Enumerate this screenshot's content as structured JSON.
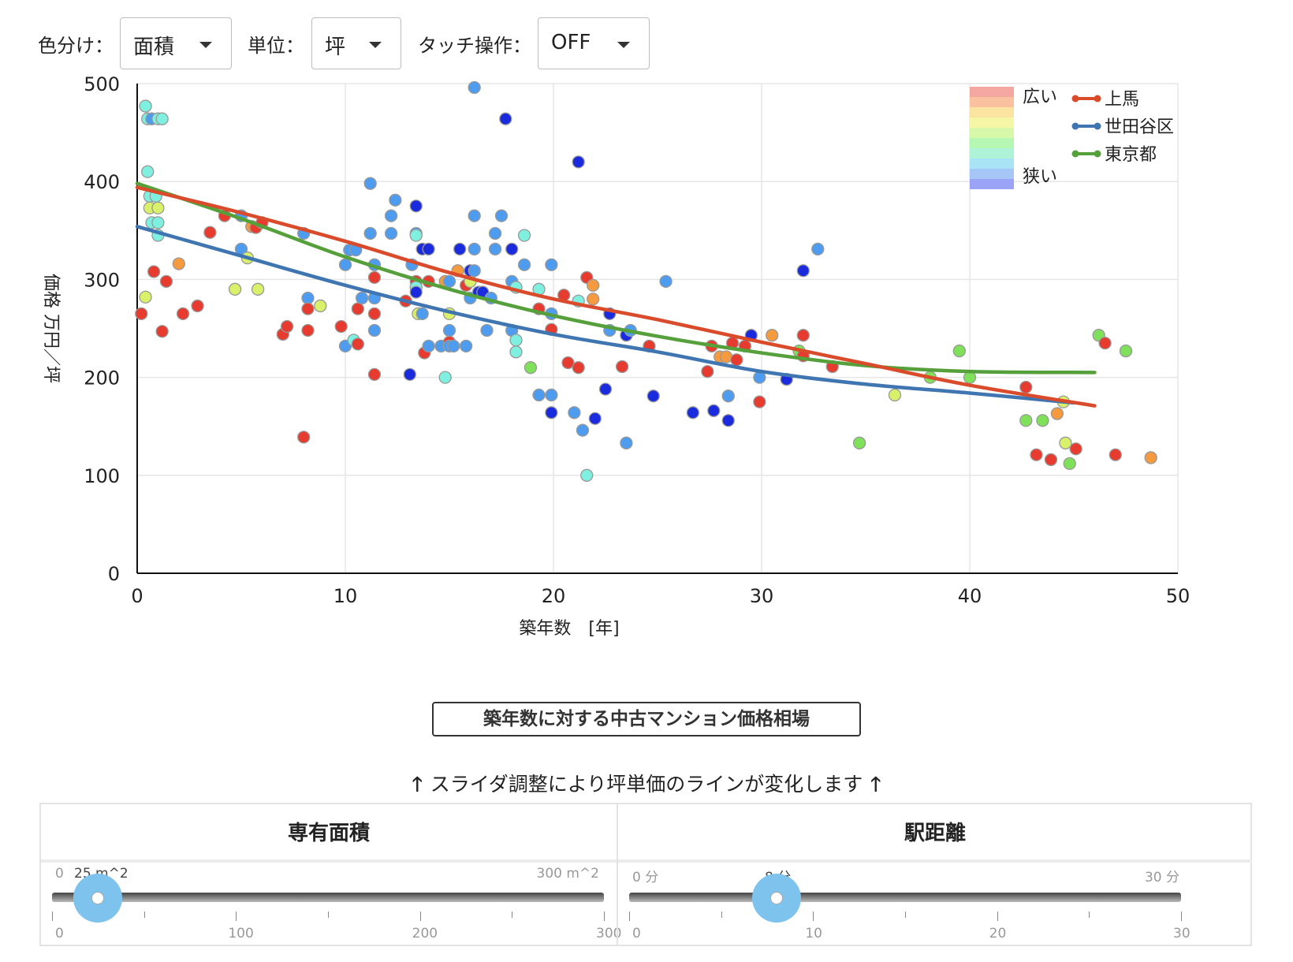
{
  "controls": {
    "color_label": "色分け：",
    "color_value": "面積",
    "unit_label": "単位：",
    "unit_value": "坪",
    "touch_label": "タッチ操作：",
    "touch_value": "OFF"
  },
  "chart_data": {
    "type": "scatter",
    "xlabel": "築年数　[年]",
    "ylabel": "価格 万円／坪",
    "xlim": [
      0,
      50
    ],
    "ylim": [
      0,
      500
    ],
    "xticks": [
      0,
      10,
      20,
      30,
      40,
      50
    ],
    "yticks": [
      0,
      100,
      200,
      300,
      400,
      500
    ],
    "grid": true,
    "legend_placement": "top-right",
    "size_legend": {
      "top": "広い",
      "bottom": "狭い",
      "colors": [
        "#f4a6a0",
        "#f9c1a0",
        "#fbe3a2",
        "#f5f7a6",
        "#d7f8a8",
        "#b6f7b4",
        "#aef2d8",
        "#aae3f5",
        "#a6c6f8",
        "#9aa3f5"
      ]
    },
    "series": [
      {
        "name": "上馬",
        "color": "#d94b2b",
        "x": [
          0,
          5,
          10,
          15,
          20,
          25,
          30,
          35,
          40,
          46
        ],
        "y": [
          394,
          368,
          339,
          307,
          280,
          259,
          236,
          214,
          192,
          171
        ]
      },
      {
        "name": "世田谷区",
        "color": "#3f75b0",
        "x": [
          0,
          5,
          10,
          15,
          20,
          25,
          30,
          35,
          40,
          45
        ],
        "y": [
          354,
          324,
          294,
          267,
          244,
          226,
          206,
          193,
          184,
          174
        ]
      },
      {
        "name": "東京都",
        "color": "#55a03b",
        "x": [
          0,
          5,
          10,
          15,
          20,
          25,
          30,
          35,
          40,
          46
        ],
        "y": [
          398,
          362,
          323,
          290,
          263,
          242,
          225,
          212,
          206,
          205
        ]
      }
    ],
    "points": [
      [
        0.2,
        265,
        "#e63b2e"
      ],
      [
        0.4,
        282,
        "#d8f06a"
      ],
      [
        0.4,
        477,
        "#7ff0e0"
      ],
      [
        0.5,
        464,
        "#7ff0e0"
      ],
      [
        0.6,
        385,
        "#7ff0e0"
      ],
      [
        0.5,
        410,
        "#7ff0e0"
      ],
      [
        0.6,
        373,
        "#d8f06a"
      ],
      [
        0.7,
        358,
        "#7ff0e0"
      ],
      [
        0.7,
        464,
        "#4d9cf0"
      ],
      [
        0.8,
        308,
        "#e63b2e"
      ],
      [
        0.9,
        385,
        "#7ff0e0"
      ],
      [
        1.0,
        345,
        "#7ff0e0"
      ],
      [
        1.0,
        373,
        "#d8f06a"
      ],
      [
        1.0,
        358,
        "#7ff0e0"
      ],
      [
        1.0,
        464,
        "#7ff0e0"
      ],
      [
        1.2,
        464,
        "#7ff0e0"
      ],
      [
        1.2,
        247,
        "#e63b2e"
      ],
      [
        1.4,
        298,
        "#e63b2e"
      ],
      [
        2.0,
        316,
        "#f59a3e"
      ],
      [
        2.2,
        265,
        "#e63b2e"
      ],
      [
        2.9,
        273,
        "#e63b2e"
      ],
      [
        3.5,
        348,
        "#e63b2e"
      ],
      [
        4.2,
        365,
        "#e63b2e"
      ],
      [
        4.7,
        290,
        "#d8f06a"
      ],
      [
        5.0,
        365,
        "#4d9cf0"
      ],
      [
        5.0,
        331,
        "#4d9cf0"
      ],
      [
        5.3,
        322,
        "#d8f06a"
      ],
      [
        5.5,
        354,
        "#f59a3e"
      ],
      [
        5.7,
        353,
        "#e63b2e"
      ],
      [
        5.8,
        290,
        "#d8f06a"
      ],
      [
        6.0,
        358,
        "#e63b2e"
      ],
      [
        7.0,
        244,
        "#e63b2e"
      ],
      [
        7.2,
        252,
        "#e63b2e"
      ],
      [
        8.0,
        139,
        "#e63b2e"
      ],
      [
        8.0,
        347,
        "#4d9cf0"
      ],
      [
        8.2,
        281,
        "#4d9cf0"
      ],
      [
        8.2,
        270,
        "#e63b2e"
      ],
      [
        8.2,
        248,
        "#e63b2e"
      ],
      [
        8.8,
        273,
        "#d8f06a"
      ],
      [
        9.8,
        252,
        "#e63b2e"
      ],
      [
        10.0,
        315,
        "#4d9cf0"
      ],
      [
        10.0,
        232,
        "#4d9cf0"
      ],
      [
        10.2,
        330,
        "#4d9cf0"
      ],
      [
        10.4,
        238,
        "#7ff0e0"
      ],
      [
        10.5,
        330,
        "#4d9cf0"
      ],
      [
        10.6,
        270,
        "#e63b2e"
      ],
      [
        10.6,
        234,
        "#e63b2e"
      ],
      [
        10.8,
        281,
        "#4d9cf0"
      ],
      [
        11.2,
        398,
        "#4d9cf0"
      ],
      [
        11.2,
        347,
        "#4d9cf0"
      ],
      [
        11.4,
        315,
        "#4d9cf0"
      ],
      [
        11.4,
        302,
        "#e63b2e"
      ],
      [
        11.4,
        281,
        "#4d9cf0"
      ],
      [
        11.4,
        265,
        "#e63b2e"
      ],
      [
        11.4,
        248,
        "#4d9cf0"
      ],
      [
        11.4,
        203,
        "#e63b2e"
      ],
      [
        12.2,
        365,
        "#4d9cf0"
      ],
      [
        12.2,
        347,
        "#4d9cf0"
      ],
      [
        12.4,
        381,
        "#4d9cf0"
      ],
      [
        12.9,
        278,
        "#e63b2e"
      ],
      [
        13.1,
        203,
        "#1a2bde"
      ],
      [
        13.2,
        315,
        "#4d9cf0"
      ],
      [
        13.4,
        375,
        "#1a2bde"
      ],
      [
        13.4,
        347,
        "#4d9cf0"
      ],
      [
        13.4,
        345,
        "#7ff0e0"
      ],
      [
        13.4,
        298,
        "#e63b2e"
      ],
      [
        13.4,
        292,
        "#7ff0e0"
      ],
      [
        13.4,
        287,
        "#1a2bde"
      ],
      [
        13.5,
        265,
        "#d8f06a"
      ],
      [
        13.7,
        265,
        "#4d9cf0"
      ],
      [
        13.7,
        331,
        "#1a2bde"
      ],
      [
        13.8,
        225,
        "#e63b2e"
      ],
      [
        14.0,
        232,
        "#4d9cf0"
      ],
      [
        14.0,
        331,
        "#1a2bde"
      ],
      [
        14.0,
        298,
        "#e63b2e"
      ],
      [
        14.6,
        232,
        "#4d9cf0"
      ],
      [
        14.8,
        200,
        "#7ff0e0"
      ],
      [
        14.8,
        298,
        "#f59a3e"
      ],
      [
        15.0,
        298,
        "#4d9cf0"
      ],
      [
        15.0,
        265,
        "#d8f06a"
      ],
      [
        15.0,
        248,
        "#4d9cf0"
      ],
      [
        15.0,
        236,
        "#e63b2e"
      ],
      [
        15.0,
        232,
        "#4d9cf0"
      ],
      [
        15.2,
        232,
        "#4d9cf0"
      ],
      [
        15.4,
        309,
        "#f59a3e"
      ],
      [
        15.5,
        331,
        "#1a2bde"
      ],
      [
        15.8,
        294,
        "#e63b2e"
      ],
      [
        15.8,
        232,
        "#4d9cf0"
      ],
      [
        16.0,
        298,
        "#d8f06a"
      ],
      [
        16.0,
        309,
        "#1a2bde"
      ],
      [
        16.0,
        281,
        "#4d9cf0"
      ],
      [
        16.2,
        331,
        "#4d9cf0"
      ],
      [
        16.2,
        365,
        "#4d9cf0"
      ],
      [
        16.2,
        496,
        "#4d9cf0"
      ],
      [
        16.2,
        309,
        "#4d9cf0"
      ],
      [
        16.4,
        287,
        "#1a2bde"
      ],
      [
        16.6,
        287,
        "#1a2bde"
      ],
      [
        16.8,
        248,
        "#4d9cf0"
      ],
      [
        17.0,
        281,
        "#4d9cf0"
      ],
      [
        17.2,
        331,
        "#4d9cf0"
      ],
      [
        17.2,
        347,
        "#4d9cf0"
      ],
      [
        17.5,
        365,
        "#4d9cf0"
      ],
      [
        17.7,
        464,
        "#1a2bde"
      ],
      [
        18.0,
        331,
        "#1a2bde"
      ],
      [
        18.0,
        298,
        "#4d9cf0"
      ],
      [
        18.0,
        248,
        "#4d9cf0"
      ],
      [
        18.2,
        292,
        "#7ff0e0"
      ],
      [
        18.2,
        238,
        "#7ff0e0"
      ],
      [
        18.2,
        226,
        "#7ff0e0"
      ],
      [
        18.6,
        345,
        "#7ff0e0"
      ],
      [
        18.6,
        315,
        "#4d9cf0"
      ],
      [
        18.9,
        210,
        "#7fe05a"
      ],
      [
        19.3,
        290,
        "#7ff0e0"
      ],
      [
        19.3,
        270,
        "#e63b2e"
      ],
      [
        19.3,
        182,
        "#4d9cf0"
      ],
      [
        19.9,
        265,
        "#4d9cf0"
      ],
      [
        19.9,
        315,
        "#4d9cf0"
      ],
      [
        19.9,
        249,
        "#e63b2e"
      ],
      [
        19.9,
        182,
        "#4d9cf0"
      ],
      [
        19.9,
        164,
        "#1a2bde"
      ],
      [
        20.5,
        284,
        "#e63b2e"
      ],
      [
        20.7,
        215,
        "#e63b2e"
      ],
      [
        21.0,
        164,
        "#4d9cf0"
      ],
      [
        21.2,
        420,
        "#1a2bde"
      ],
      [
        21.2,
        278,
        "#7ff0e0"
      ],
      [
        21.2,
        210,
        "#e63b2e"
      ],
      [
        21.4,
        146,
        "#4d9cf0"
      ],
      [
        21.6,
        100,
        "#7ff0e0"
      ],
      [
        21.6,
        302,
        "#e63b2e"
      ],
      [
        21.9,
        294,
        "#f59a3e"
      ],
      [
        21.9,
        280,
        "#f59a3e"
      ],
      [
        22.0,
        158,
        "#1a2bde"
      ],
      [
        22.5,
        188,
        "#1a2bde"
      ],
      [
        22.7,
        265,
        "#1a2bde"
      ],
      [
        22.7,
        248,
        "#4d9cf0"
      ],
      [
        23.3,
        211,
        "#e63b2e"
      ],
      [
        23.5,
        243,
        "#1a2bde"
      ],
      [
        23.5,
        133,
        "#4d9cf0"
      ],
      [
        23.7,
        248,
        "#4d9cf0"
      ],
      [
        24.6,
        232,
        "#e63b2e"
      ],
      [
        24.8,
        181,
        "#1a2bde"
      ],
      [
        25.4,
        298,
        "#4d9cf0"
      ],
      [
        26.7,
        164,
        "#1a2bde"
      ],
      [
        27.4,
        206,
        "#e63b2e"
      ],
      [
        27.6,
        232,
        "#e63b2e"
      ],
      [
        27.7,
        166,
        "#1a2bde"
      ],
      [
        28.0,
        221,
        "#f59a3e"
      ],
      [
        28.3,
        221,
        "#f59a3e"
      ],
      [
        28.4,
        181,
        "#4d9cf0"
      ],
      [
        28.4,
        156,
        "#1a2bde"
      ],
      [
        28.6,
        235,
        "#e63b2e"
      ],
      [
        28.8,
        218,
        "#e63b2e"
      ],
      [
        29.2,
        232,
        "#e63b2e"
      ],
      [
        29.5,
        243,
        "#1a2bde"
      ],
      [
        29.9,
        175,
        "#e63b2e"
      ],
      [
        29.9,
        200,
        "#4d9cf0"
      ],
      [
        30.5,
        243,
        "#f59a3e"
      ],
      [
        31.2,
        198,
        "#1a2bde"
      ],
      [
        31.8,
        227,
        "#7fe05a"
      ],
      [
        32.0,
        309,
        "#1a2bde"
      ],
      [
        32.0,
        243,
        "#e63b2e"
      ],
      [
        32.0,
        222,
        "#e63b2e"
      ],
      [
        32.7,
        331,
        "#4d9cf0"
      ],
      [
        33.4,
        211,
        "#e63b2e"
      ],
      [
        34.7,
        133,
        "#7fe05a"
      ],
      [
        36.4,
        182,
        "#d8f06a"
      ],
      [
        38.1,
        200,
        "#7fe05a"
      ],
      [
        39.5,
        227,
        "#7fe05a"
      ],
      [
        40.0,
        200,
        "#7fe05a"
      ],
      [
        42.7,
        190,
        "#e63b2e"
      ],
      [
        42.7,
        156,
        "#7fe05a"
      ],
      [
        43.2,
        121,
        "#e63b2e"
      ],
      [
        43.5,
        156,
        "#7fe05a"
      ],
      [
        43.9,
        116,
        "#e63b2e"
      ],
      [
        44.2,
        163,
        "#f59a3e"
      ],
      [
        44.5,
        175,
        "#d8f06a"
      ],
      [
        44.6,
        133,
        "#d8f06a"
      ],
      [
        44.8,
        112,
        "#7fe05a"
      ],
      [
        45.1,
        127,
        "#e63b2e"
      ],
      [
        46.2,
        243,
        "#7fe05a"
      ],
      [
        46.5,
        235,
        "#e63b2e"
      ],
      [
        47.0,
        121,
        "#e63b2e"
      ],
      [
        47.5,
        227,
        "#7fe05a"
      ],
      [
        48.7,
        118,
        "#f59a3e"
      ]
    ]
  },
  "chart_title_button": "築年数に対する中古マンション価格相場",
  "hint": {
    "arrow_left": "🡑",
    "text": "スライダ調整により坪単価のラインが変化します",
    "arrow_right": "🡑"
  },
  "sliders": [
    {
      "title": "専有面積",
      "min_label": "0",
      "current_label": "25 m^2",
      "max_label": "300 m^2",
      "min": 0,
      "max": 300,
      "value": 25,
      "ticks": [
        "0",
        "100",
        "200",
        "300"
      ]
    },
    {
      "title": "駅距離",
      "min_label": "0 分",
      "current_label": "8 分",
      "max_label": "30 分",
      "min": 0,
      "max": 30,
      "value": 8,
      "ticks": [
        "0",
        "10",
        "20",
        "30"
      ]
    }
  ]
}
